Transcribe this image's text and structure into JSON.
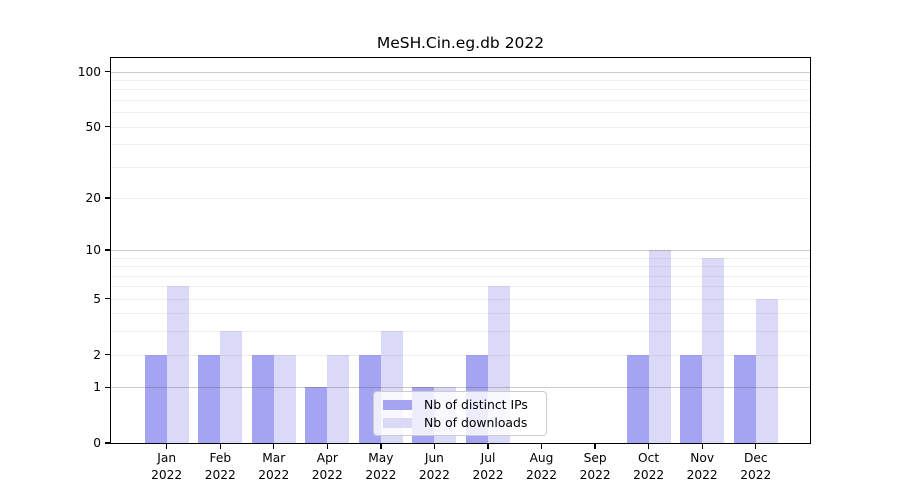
{
  "chart_data": {
    "type": "bar",
    "title": "MeSH.Cin.eg.db 2022",
    "categories": [
      "Jan",
      "Feb",
      "Mar",
      "Apr",
      "May",
      "Jun",
      "Jul",
      "Aug",
      "Sep",
      "Oct",
      "Nov",
      "Dec"
    ],
    "category_year": "2022",
    "series": [
      {
        "name": "Nb of distinct IPs",
        "color": "#a4a4f2",
        "values": [
          2,
          2,
          2,
          1,
          2,
          1,
          2,
          0,
          0,
          2,
          2,
          2
        ]
      },
      {
        "name": "Nb of downloads",
        "color": "#dadaf8",
        "values": [
          6,
          3,
          2,
          2,
          3,
          1,
          6,
          0,
          0,
          10,
          9,
          5
        ]
      }
    ],
    "xlabel": "",
    "ylabel": "",
    "y_axis": {
      "scale": "log1p",
      "tick_values": [
        0,
        1,
        2,
        5,
        10,
        20,
        50,
        100
      ],
      "tick_labels": [
        "0",
        "1",
        "2",
        "5",
        "10",
        "20",
        "50",
        "100"
      ],
      "major_gridline_values": [
        1,
        10,
        100
      ],
      "minor_gridline_values": [
        2,
        3,
        4,
        5,
        6,
        7,
        8,
        9,
        20,
        30,
        40,
        50,
        60,
        70,
        80,
        90
      ]
    },
    "grid": "horizontal",
    "legend_position": "inside-bottom-center",
    "background_color": "#ffffff"
  }
}
